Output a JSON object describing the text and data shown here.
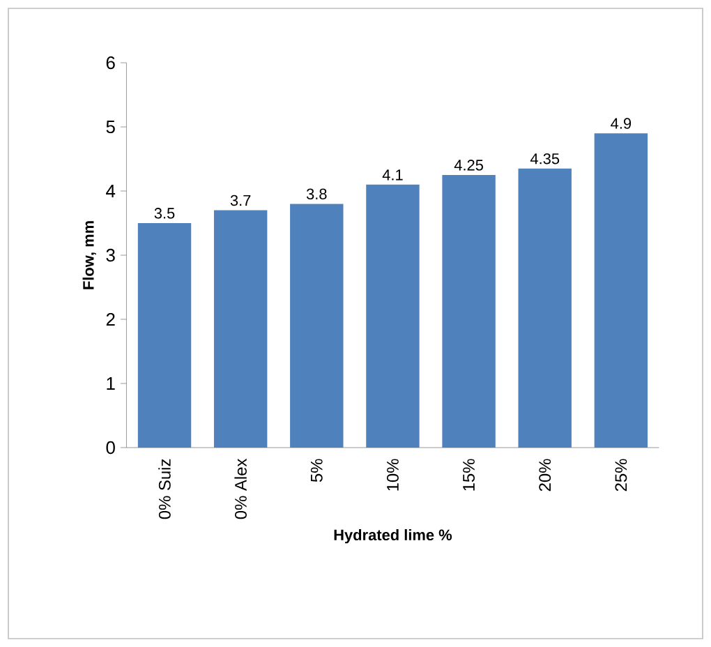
{
  "chart_data": {
    "type": "bar",
    "xlabel": "Hydrated lime %",
    "ylabel": "Flow, mm",
    "categories": [
      "0% Suiz",
      "0% Alex",
      "5%",
      "10%",
      "15%",
      "20%",
      "25%"
    ],
    "values": [
      3.5,
      3.7,
      3.8,
      4.1,
      4.25,
      4.35,
      4.9
    ],
    "color": "#4f81bd",
    "ylim": [
      0,
      6
    ],
    "yticks": [
      0,
      1,
      2,
      3,
      4,
      5,
      6
    ],
    "data_labels": true,
    "grid": false
  }
}
